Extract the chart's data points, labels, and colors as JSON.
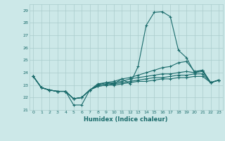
{
  "xlabel": "Humidex (Indice chaleur)",
  "bg_color": "#cce8e8",
  "grid_color": "#aacccc",
  "line_color": "#1a6b6b",
  "xlim": [
    -0.5,
    23.5
  ],
  "ylim": [
    21,
    29.5
  ],
  "xticks": [
    0,
    1,
    2,
    3,
    4,
    5,
    6,
    7,
    8,
    9,
    10,
    11,
    12,
    13,
    14,
    15,
    16,
    17,
    18,
    19,
    20,
    21,
    22,
    23
  ],
  "yticks": [
    21,
    22,
    23,
    24,
    25,
    26,
    27,
    28,
    29
  ],
  "line1": [
    23.7,
    22.8,
    22.6,
    22.5,
    22.5,
    21.4,
    21.4,
    22.6,
    23.1,
    23.2,
    23.1,
    23.5,
    23.1,
    24.5,
    27.8,
    28.85,
    28.9,
    28.5,
    25.8,
    25.2,
    24.0,
    24.2,
    23.2,
    23.4
  ],
  "line2": [
    23.7,
    22.8,
    22.6,
    22.5,
    22.5,
    21.9,
    22.0,
    22.6,
    23.0,
    23.2,
    23.3,
    23.5,
    23.6,
    23.8,
    24.0,
    24.2,
    24.4,
    24.5,
    24.8,
    24.9,
    24.1,
    24.2,
    23.2,
    23.4
  ],
  "line3": [
    23.7,
    22.8,
    22.6,
    22.5,
    22.5,
    21.9,
    22.0,
    22.6,
    23.0,
    23.1,
    23.2,
    23.3,
    23.5,
    23.6,
    23.7,
    23.8,
    23.9,
    23.9,
    24.0,
    24.1,
    24.0,
    24.1,
    23.2,
    23.4
  ],
  "line4": [
    23.7,
    22.8,
    22.6,
    22.5,
    22.5,
    21.9,
    22.0,
    22.6,
    22.9,
    23.0,
    23.1,
    23.2,
    23.3,
    23.4,
    23.5,
    23.6,
    23.6,
    23.7,
    23.8,
    23.8,
    23.9,
    23.9,
    23.2,
    23.4
  ],
  "line5": [
    23.7,
    22.8,
    22.6,
    22.5,
    22.5,
    21.9,
    22.0,
    22.6,
    22.9,
    23.0,
    23.0,
    23.1,
    23.2,
    23.3,
    23.3,
    23.4,
    23.5,
    23.5,
    23.6,
    23.6,
    23.7,
    23.7,
    23.2,
    23.4
  ]
}
